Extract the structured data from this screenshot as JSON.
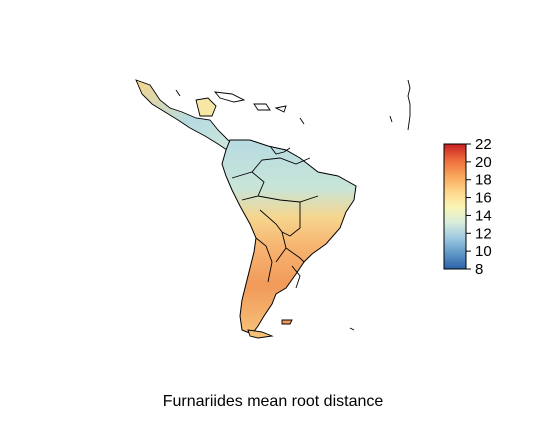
{
  "map": {
    "title": "Furnariides mean root distance",
    "colorbar": {
      "min": 8,
      "max": 22,
      "ticks": [
        8,
        10,
        12,
        14,
        16,
        18,
        20,
        22
      ],
      "colors": [
        "#2c62a8",
        "#5f99c7",
        "#9ec9e0",
        "#d9eedb",
        "#fbf5b4",
        "#fdd488",
        "#f9a459",
        "#ec6a3c",
        "#c81f22"
      ]
    }
  }
}
